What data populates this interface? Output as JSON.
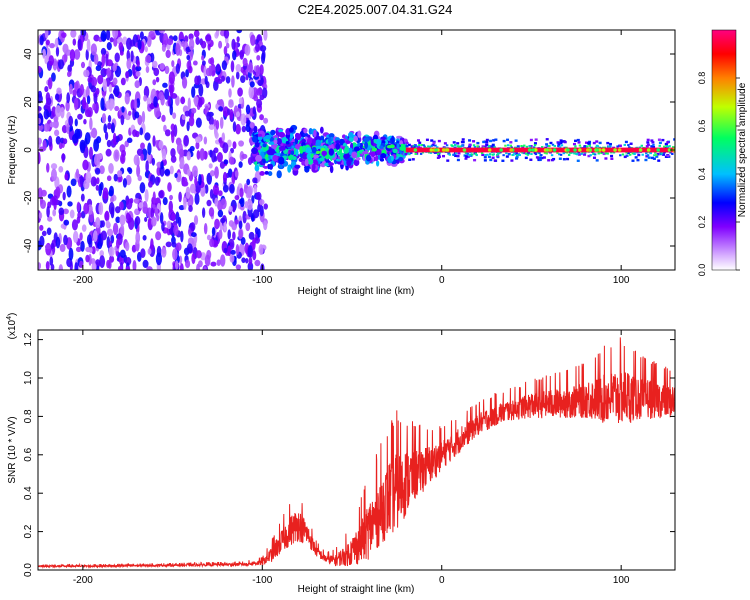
{
  "title": "C2E4.2025.007.04.31.G24",
  "colors": {
    "snr_line": "#e8211f",
    "axis": "#000000",
    "colormap": [
      "#ffffff",
      "#d8b0ff",
      "#8000ff",
      "#0000ff",
      "#00c0ff",
      "#00ff60",
      "#c0ff00",
      "#ff8000",
      "#ff0000",
      "#ff0080"
    ]
  },
  "chart_data": [
    {
      "type": "heatmap",
      "name": "spectrogram",
      "xlabel": "Height of straight line (km)",
      "ylabel": "Frequency (Hz)",
      "xlim": [
        -225,
        130
      ],
      "ylim": [
        -50,
        50
      ],
      "xticks": [
        -200,
        -100,
        0,
        100
      ],
      "yticks": [
        -40,
        -20,
        0,
        20,
        40
      ],
      "colorbar": {
        "label": "Normalized spectral amplitude",
        "range": [
          0,
          1
        ],
        "ticks": [
          "0.0",
          "0.2",
          "0.4",
          "0.6",
          "0.8"
        ]
      },
      "regions": [
        {
          "x_range": [
            -225,
            -98
          ],
          "freq_range": [
            -50,
            50
          ],
          "level": 0.12,
          "description": "broadband noise"
        },
        {
          "x_range": [
            -105,
            -20
          ],
          "freq_range": [
            -12,
            12
          ],
          "level": 0.35,
          "description": "emerging signal"
        },
        {
          "x_range": [
            -20,
            130
          ],
          "freq_range": [
            -1,
            1
          ],
          "level": 0.95,
          "description": "narrow signal line"
        }
      ]
    },
    {
      "type": "line",
      "name": "snr",
      "xlabel": "Height of straight line (km)",
      "ylabel": "SNR (10 * V/V)",
      "scale_label": "(x10",
      "scale_exp": "4",
      "scale_close": ")",
      "xlim": [
        -225,
        130
      ],
      "ylim": [
        0,
        1.25
      ],
      "xticks": [
        -200,
        -100,
        0,
        100
      ],
      "yticks": [
        "0.0",
        "0.2",
        "0.4",
        "0.6",
        "0.8",
        "1.0",
        "1.2"
      ],
      "series": [
        {
          "name": "SNR",
          "x": [
            -225,
            -200,
            -150,
            -110,
            -100,
            -95,
            -90,
            -85,
            -80,
            -75,
            -70,
            -65,
            -60,
            -55,
            -50,
            -45,
            -40,
            -35,
            -30,
            -25,
            -20,
            -15,
            -10,
            -5,
            0,
            10,
            20,
            30,
            40,
            50,
            60,
            70,
            80,
            90,
            100,
            110,
            120,
            130
          ],
          "y": [
            0.02,
            0.02,
            0.025,
            0.03,
            0.04,
            0.08,
            0.14,
            0.2,
            0.24,
            0.19,
            0.1,
            0.06,
            0.05,
            0.07,
            0.1,
            0.15,
            0.22,
            0.3,
            0.37,
            0.42,
            0.46,
            0.5,
            0.53,
            0.56,
            0.6,
            0.68,
            0.76,
            0.81,
            0.84,
            0.86,
            0.87,
            0.88,
            0.89,
            0.9,
            0.91,
            0.9,
            0.89,
            0.88
          ],
          "noise_amplitude": [
            0.005,
            0.005,
            0.006,
            0.008,
            0.015,
            0.04,
            0.06,
            0.08,
            0.09,
            0.06,
            0.03,
            0.02,
            0.03,
            0.05,
            0.08,
            0.12,
            0.16,
            0.18,
            0.2,
            0.22,
            0.18,
            0.14,
            0.12,
            0.1,
            0.08,
            0.07,
            0.06,
            0.06,
            0.06,
            0.07,
            0.08,
            0.09,
            0.1,
            0.14,
            0.16,
            0.12,
            0.1,
            0.09
          ]
        }
      ]
    }
  ]
}
